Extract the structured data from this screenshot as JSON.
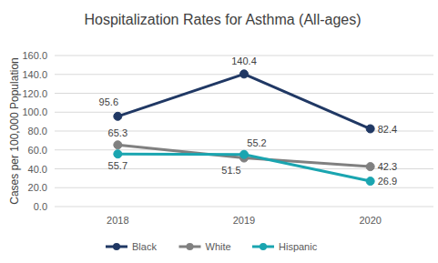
{
  "chart_data": {
    "type": "line",
    "title": "Hospitalization Rates for Asthma (All-ages)",
    "y_label": "Cases per 100,000 Population",
    "categories": [
      "2018",
      "2019",
      "2020"
    ],
    "series": [
      {
        "name": "Black",
        "color": "#203864",
        "values": [
          95.6,
          140.4,
          82.4
        ],
        "marker": "circle"
      },
      {
        "name": "White",
        "color": "#808080",
        "values": [
          65.3,
          51.5,
          42.3
        ],
        "marker": "circle"
      },
      {
        "name": "Hispanic",
        "color": "#1aa5b0",
        "values": [
          55.7,
          55.2,
          26.9
        ],
        "marker": "circle"
      }
    ],
    "ylim": [
      0,
      160
    ],
    "yticks": [
      {
        "value": 0,
        "label": "0.0"
      },
      {
        "value": 20,
        "label": "20.0"
      },
      {
        "value": 40,
        "label": "40.0"
      },
      {
        "value": 60,
        "label": "60.0"
      },
      {
        "value": 80,
        "label": "80.0"
      },
      {
        "value": 100,
        "label": "100.0"
      },
      {
        "value": 120,
        "label": "120.0"
      },
      {
        "value": 140,
        "label": "140.0"
      },
      {
        "value": 160,
        "label": "160.0"
      }
    ],
    "grid": true,
    "data_labels": true,
    "legend": "bottom"
  }
}
